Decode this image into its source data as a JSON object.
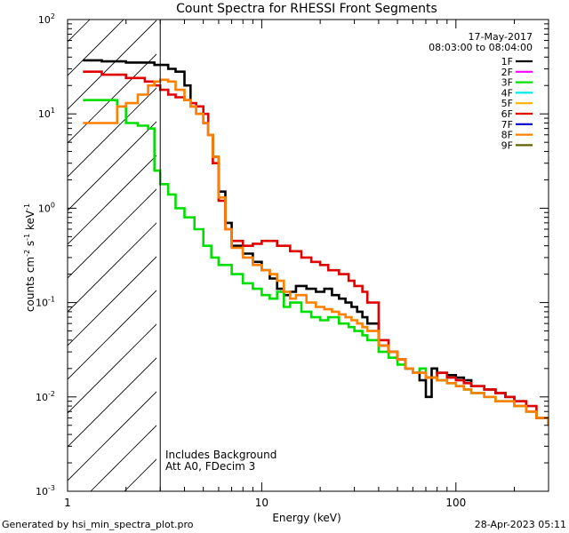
{
  "chart_data": {
    "type": "line",
    "title": "Count Spectra for RHESSI Front Segments",
    "xlabel": "Energy (keV)",
    "ylabel_parts": [
      "counts cm",
      "-2",
      " s",
      "-1",
      " keV",
      "-1"
    ],
    "xscale": "log",
    "yscale": "log",
    "xlim": [
      1,
      300
    ],
    "ylim": [
      0.001,
      100
    ],
    "x_tick_labels": [
      "1",
      "10",
      "100"
    ],
    "y_tick_labels": [
      {
        "base": "10",
        "exp": "-3"
      },
      {
        "base": "10",
        "exp": "-2"
      },
      {
        "base": "10",
        "exp": "-1"
      },
      {
        "base": "10",
        "exp": "0"
      },
      {
        "base": "10",
        "exp": "1"
      },
      {
        "base": "10",
        "exp": "2"
      }
    ],
    "date": "17-May-2017",
    "time_range": "08:03:00 to 08:04:00",
    "annotations": [
      "Includes Background",
      "Att A0, FDecim 3"
    ],
    "excluded_region_keV": [
      1,
      3
    ],
    "legend": [
      {
        "name": "1F",
        "color": "#000000"
      },
      {
        "name": "2F",
        "color": "#ff00ff"
      },
      {
        "name": "3F",
        "color": "#00e000"
      },
      {
        "name": "4F",
        "color": "#00e8e8"
      },
      {
        "name": "5F",
        "color": "#ffb000"
      },
      {
        "name": "6F",
        "color": "#e00000"
      },
      {
        "name": "7F",
        "color": "#0000d0"
      },
      {
        "name": "8F",
        "color": "#ff8000"
      },
      {
        "name": "9F",
        "color": "#606000"
      }
    ],
    "series": [
      {
        "name": "1F",
        "color": "#000000",
        "x": [
          1.2,
          1.5,
          2,
          2.5,
          2.8,
          3.0,
          3.3,
          3.6,
          4.0,
          4.3,
          4.6,
          5.0,
          5.3,
          5.6,
          6.0,
          6.5,
          7.0,
          8.0,
          9.0,
          10,
          11,
          12,
          13,
          14,
          15,
          17,
          19,
          21,
          23,
          25,
          27,
          29,
          31,
          33,
          35,
          40,
          45,
          50,
          55,
          60,
          65,
          70,
          75,
          80,
          90,
          100,
          110,
          120,
          140,
          160,
          180,
          200,
          230,
          260,
          300
        ],
        "y": [
          37,
          36,
          35,
          35,
          33,
          33,
          30,
          28,
          20,
          12,
          10,
          8,
          6,
          3.5,
          1.5,
          0.7,
          0.4,
          0.33,
          0.27,
          0.22,
          0.18,
          0.14,
          0.12,
          0.13,
          0.15,
          0.14,
          0.13,
          0.14,
          0.12,
          0.11,
          0.1,
          0.09,
          0.08,
          0.07,
          0.06,
          0.035,
          0.03,
          0.025,
          0.02,
          0.018,
          0.015,
          0.01,
          0.02,
          0.018,
          0.017,
          0.016,
          0.015,
          0.013,
          0.012,
          0.011,
          0.01,
          0.009,
          0.007,
          0.006,
          0.005
        ]
      },
      {
        "name": "3F",
        "color": "#00e000",
        "x": [
          1.2,
          1.5,
          1.8,
          2.0,
          2.3,
          2.6,
          2.8,
          3.0,
          3.3,
          3.6,
          4.0,
          4.5,
          5.0,
          5.5,
          6.0,
          7.0,
          8.0,
          9.0,
          10,
          11,
          12,
          13,
          14,
          16,
          18,
          20,
          22,
          25,
          28,
          30,
          33,
          35,
          40,
          45,
          50,
          55,
          60,
          65,
          70,
          80,
          90,
          100,
          110,
          120,
          140,
          160,
          180,
          200,
          230,
          260,
          300
        ],
        "y": [
          14,
          14,
          12,
          8,
          7.5,
          7,
          2.5,
          1.8,
          1.4,
          1.0,
          0.8,
          0.6,
          0.4,
          0.3,
          0.25,
          0.2,
          0.16,
          0.14,
          0.12,
          0.11,
          0.13,
          0.09,
          0.1,
          0.08,
          0.07,
          0.065,
          0.07,
          0.06,
          0.055,
          0.05,
          0.045,
          0.04,
          0.03,
          0.026,
          0.022,
          0.02,
          0.018,
          0.02,
          0.016,
          0.015,
          0.014,
          0.013,
          0.012,
          0.011,
          0.01,
          0.009,
          0.009,
          0.008,
          0.007,
          0.006,
          0.005
        ]
      },
      {
        "name": "6F",
        "color": "#e00000",
        "x": [
          1.2,
          1.5,
          2.0,
          2.5,
          2.8,
          3.0,
          3.3,
          3.6,
          4.0,
          4.3,
          4.6,
          5.0,
          5.3,
          5.6,
          6.0,
          6.5,
          7.0,
          8.0,
          9.0,
          10,
          11,
          12,
          14,
          16,
          18,
          20,
          22,
          25,
          28,
          30,
          33,
          35,
          40,
          45,
          50,
          55,
          60,
          70,
          80,
          90,
          100,
          110,
          120,
          140,
          160,
          180,
          200,
          230,
          260,
          300
        ],
        "y": [
          28,
          26,
          24,
          22,
          20,
          18,
          16,
          15,
          14,
          13,
          12,
          10,
          6,
          3,
          1.2,
          0.6,
          0.45,
          0.4,
          0.42,
          0.45,
          0.45,
          0.4,
          0.35,
          0.3,
          0.27,
          0.25,
          0.22,
          0.2,
          0.17,
          0.15,
          0.13,
          0.1,
          0.04,
          0.03,
          0.025,
          0.02,
          0.018,
          0.016,
          0.018,
          0.016,
          0.015,
          0.014,
          0.013,
          0.012,
          0.011,
          0.01,
          0.009,
          0.008,
          0.006,
          0.005
        ]
      },
      {
        "name": "8F",
        "color": "#ff8000",
        "x": [
          1.2,
          1.5,
          1.8,
          2.0,
          2.3,
          2.6,
          2.8,
          3.0,
          3.3,
          3.6,
          4.0,
          4.3,
          4.6,
          5.0,
          5.3,
          5.6,
          6.0,
          6.5,
          7.0,
          8.0,
          9.0,
          10,
          11,
          12,
          13,
          14,
          15,
          17,
          19,
          21,
          23,
          25,
          27,
          29,
          31,
          33,
          35,
          40,
          45,
          50,
          55,
          60,
          70,
          80,
          90,
          100,
          110,
          120,
          140,
          160,
          180,
          200,
          230,
          260,
          300
        ],
        "y": [
          8,
          8,
          12,
          13,
          16,
          20,
          22,
          23,
          22,
          18,
          14,
          12,
          10,
          8,
          6,
          3.5,
          1.3,
          0.6,
          0.38,
          0.3,
          0.25,
          0.22,
          0.2,
          0.17,
          0.13,
          0.11,
          0.12,
          0.1,
          0.09,
          0.085,
          0.08,
          0.075,
          0.07,
          0.065,
          0.06,
          0.055,
          0.05,
          0.035,
          0.03,
          0.025,
          0.02,
          0.018,
          0.016,
          0.015,
          0.014,
          0.013,
          0.012,
          0.011,
          0.01,
          0.009,
          0.009,
          0.008,
          0.007,
          0.006,
          0.005
        ]
      }
    ]
  },
  "footer": {
    "generated_by": "Generated by hsi_min_spectra_plot.pro",
    "timestamp": "28-Apr-2023 05:11"
  }
}
